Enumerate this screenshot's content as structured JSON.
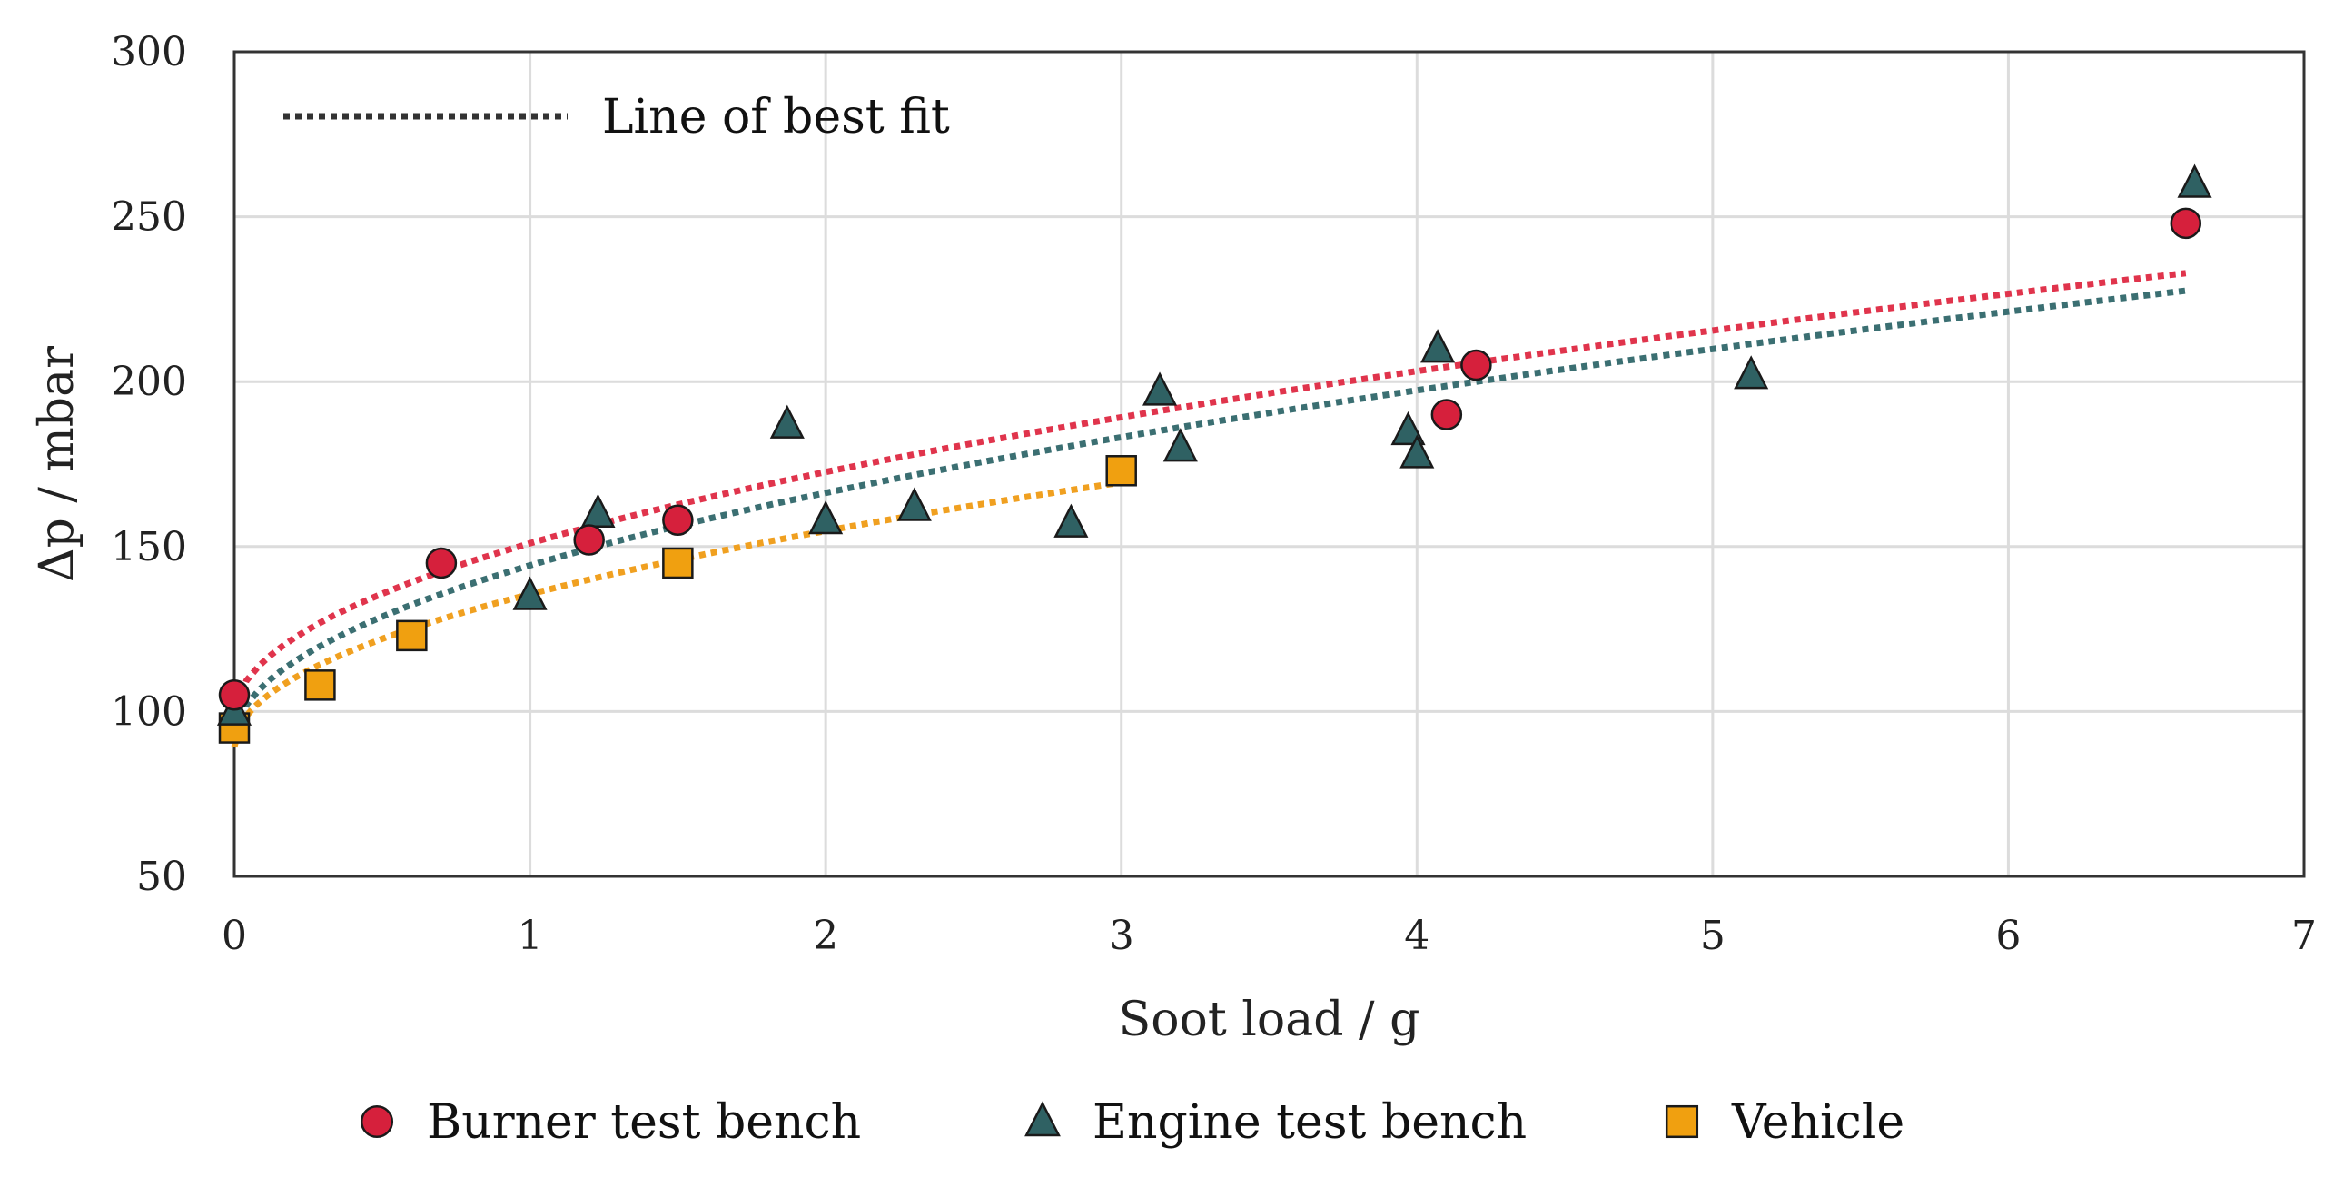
{
  "chart_data": {
    "type": "scatter",
    "title": "",
    "xlabel": "Soot load / g",
    "ylabel": "Δp / mbar",
    "xlim": [
      0,
      7
    ],
    "ylim": [
      50,
      300
    ],
    "xticks": [
      "0",
      "1",
      "2",
      "3",
      "4",
      "5",
      "6",
      "7"
    ],
    "yticks": [
      "50",
      "100",
      "150",
      "200",
      "250",
      "300"
    ],
    "grid": true,
    "fit_legend_label": "Line of best fit",
    "fit_legend_placement": "top-left",
    "series_legend_placement": "bottom",
    "series": [
      {
        "name": "Burner test bench",
        "marker": "circle",
        "color": "#d6203c",
        "fit_color": "#e0344c",
        "fit_range": [
          0,
          6.6
        ],
        "points": [
          [
            0,
            105
          ],
          [
            0.7,
            145
          ],
          [
            1.2,
            152
          ],
          [
            1.5,
            158
          ],
          [
            4.1,
            190
          ],
          [
            4.2,
            205
          ],
          [
            6.6,
            248
          ]
        ]
      },
      {
        "name": "Engine test bench",
        "marker": "triangle",
        "color": "#2f6163",
        "fit_color": "#3b6f72",
        "fit_range": [
          0,
          6.6
        ],
        "points": [
          [
            0,
            100
          ],
          [
            1.0,
            135
          ],
          [
            1.23,
            160
          ],
          [
            1.87,
            187
          ],
          [
            2.0,
            158
          ],
          [
            2.3,
            162
          ],
          [
            2.83,
            157
          ],
          [
            3.13,
            197
          ],
          [
            3.2,
            180
          ],
          [
            3.97,
            185
          ],
          [
            4.0,
            178
          ],
          [
            4.07,
            210
          ],
          [
            5.13,
            202
          ],
          [
            6.63,
            260
          ]
        ]
      },
      {
        "name": "Vehicle",
        "marker": "square",
        "color": "#f0a010",
        "fit_color": "#f0a020",
        "fit_range": [
          0,
          3.0
        ],
        "points": [
          [
            0,
            95
          ],
          [
            0.29,
            108
          ],
          [
            0.6,
            123
          ],
          [
            1.5,
            145
          ],
          [
            3.0,
            173
          ]
        ]
      }
    ]
  }
}
